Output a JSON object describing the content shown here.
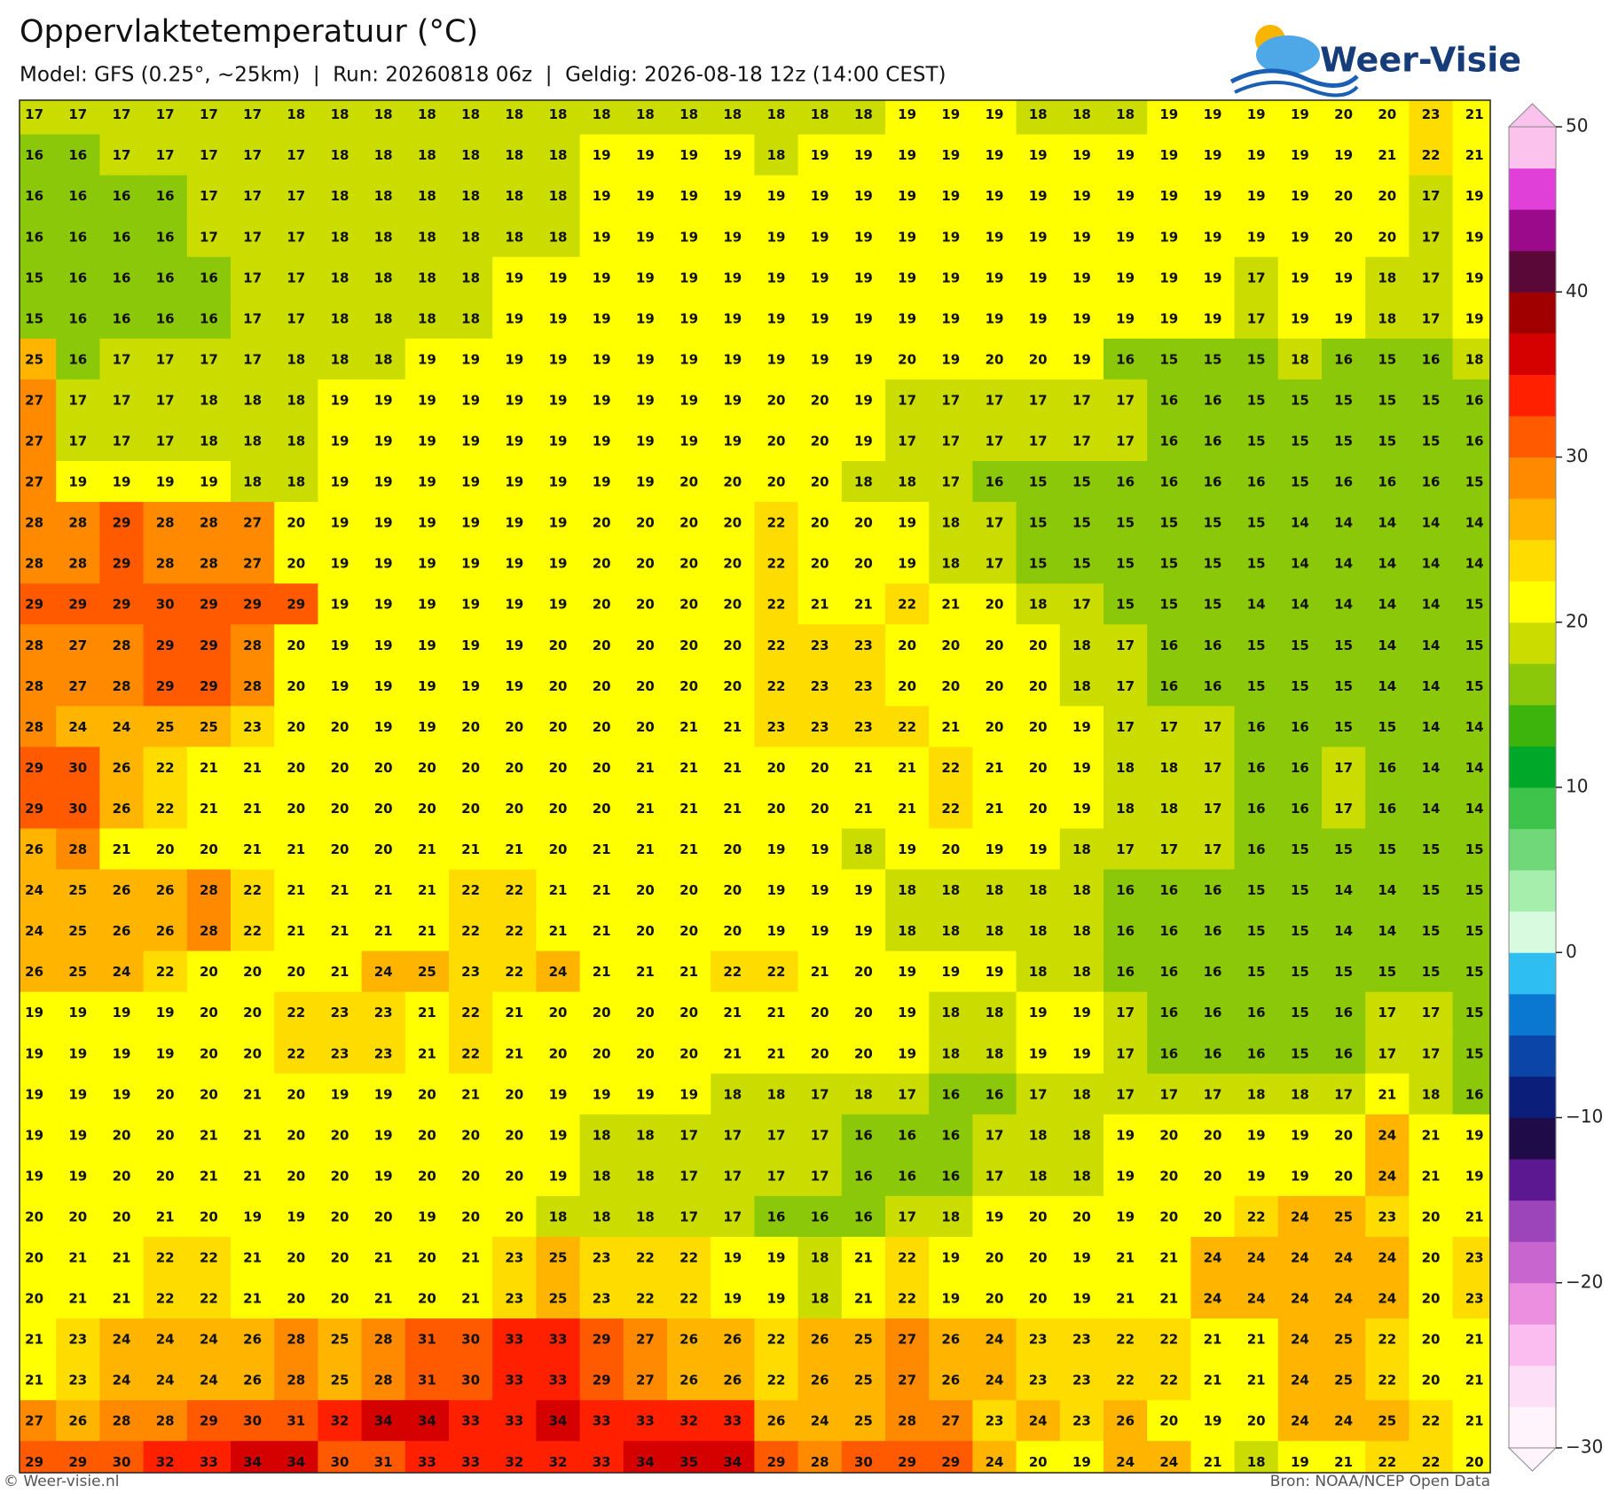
{
  "map": {
    "title": "Oppervlaktetemperatuur (°C)",
    "subtitle": "Model: GFS (0.25°, ~25km)  |  Run: 20260818 06z  |  Geldig: 2026-08-18 12z (14:00 CEST)",
    "logo": "Weer-Visie",
    "footer_left": "© Weer-visie.nl",
    "footer_right": "Bron: NOAA/NCEP Open Data",
    "values": [
      [
        17,
        17,
        17,
        17,
        17,
        17,
        18,
        18,
        18,
        18,
        18,
        18,
        18,
        18,
        18,
        18,
        18,
        18,
        18,
        18,
        19,
        19,
        19,
        18,
        18,
        18,
        19,
        19,
        19,
        19,
        20,
        20,
        23,
        21
      ],
      [
        16,
        16,
        17,
        17,
        17,
        17,
        17,
        18,
        18,
        18,
        18,
        18,
        18,
        19,
        19,
        19,
        19,
        18,
        19,
        19,
        19,
        19,
        19,
        19,
        19,
        19,
        19,
        19,
        19,
        19,
        19,
        21,
        22,
        21
      ],
      [
        16,
        16,
        16,
        16,
        17,
        17,
        17,
        18,
        18,
        18,
        18,
        18,
        18,
        19,
        19,
        19,
        19,
        19,
        19,
        19,
        19,
        19,
        19,
        19,
        19,
        19,
        19,
        19,
        19,
        19,
        20,
        20,
        17,
        19
      ],
      [
        16,
        16,
        16,
        16,
        17,
        17,
        17,
        18,
        18,
        18,
        18,
        18,
        18,
        19,
        19,
        19,
        19,
        19,
        19,
        19,
        19,
        19,
        19,
        19,
        19,
        19,
        19,
        19,
        19,
        19,
        20,
        20,
        17,
        19
      ],
      [
        15,
        16,
        16,
        16,
        16,
        17,
        17,
        18,
        18,
        18,
        18,
        19,
        19,
        19,
        19,
        19,
        19,
        19,
        19,
        19,
        19,
        19,
        19,
        19,
        19,
        19,
        19,
        19,
        17,
        19,
        19,
        18,
        17,
        19
      ],
      [
        15,
        16,
        16,
        16,
        16,
        17,
        17,
        18,
        18,
        18,
        18,
        19,
        19,
        19,
        19,
        19,
        19,
        19,
        19,
        19,
        19,
        19,
        19,
        19,
        19,
        19,
        19,
        19,
        17,
        19,
        19,
        18,
        17,
        19
      ],
      [
        25,
        16,
        17,
        17,
        17,
        17,
        18,
        18,
        18,
        19,
        19,
        19,
        19,
        19,
        19,
        19,
        19,
        19,
        19,
        19,
        20,
        19,
        20,
        20,
        19,
        16,
        15,
        15,
        15,
        18,
        16,
        15,
        16,
        18
      ],
      [
        27,
        17,
        17,
        17,
        18,
        18,
        18,
        19,
        19,
        19,
        19,
        19,
        19,
        19,
        19,
        19,
        19,
        20,
        20,
        19,
        17,
        17,
        17,
        17,
        17,
        17,
        16,
        16,
        15,
        15,
        15,
        15,
        15,
        16
      ],
      [
        27,
        17,
        17,
        17,
        18,
        18,
        18,
        19,
        19,
        19,
        19,
        19,
        19,
        19,
        19,
        19,
        19,
        20,
        20,
        19,
        17,
        17,
        17,
        17,
        17,
        17,
        16,
        16,
        15,
        15,
        15,
        15,
        15,
        16
      ],
      [
        27,
        19,
        19,
        19,
        19,
        18,
        18,
        19,
        19,
        19,
        19,
        19,
        19,
        19,
        19,
        20,
        20,
        20,
        20,
        18,
        18,
        17,
        16,
        15,
        15,
        16,
        16,
        16,
        16,
        15,
        16,
        16,
        16,
        15
      ],
      [
        28,
        28,
        29,
        28,
        28,
        27,
        20,
        19,
        19,
        19,
        19,
        19,
        19,
        20,
        20,
        20,
        20,
        22,
        20,
        20,
        19,
        18,
        17,
        15,
        15,
        15,
        15,
        15,
        15,
        14,
        14,
        14,
        14,
        14
      ],
      [
        28,
        28,
        29,
        28,
        28,
        27,
        20,
        19,
        19,
        19,
        19,
        19,
        19,
        20,
        20,
        20,
        20,
        22,
        20,
        20,
        19,
        18,
        17,
        15,
        15,
        15,
        15,
        15,
        15,
        14,
        14,
        14,
        14,
        14
      ],
      [
        29,
        29,
        29,
        30,
        29,
        29,
        29,
        19,
        19,
        19,
        19,
        19,
        19,
        20,
        20,
        20,
        20,
        22,
        21,
        21,
        22,
        21,
        20,
        18,
        17,
        15,
        15,
        15,
        14,
        14,
        14,
        14,
        14,
        15
      ],
      [
        28,
        27,
        28,
        29,
        29,
        28,
        20,
        19,
        19,
        19,
        19,
        19,
        20,
        20,
        20,
        20,
        20,
        22,
        23,
        23,
        20,
        20,
        20,
        20,
        18,
        17,
        16,
        16,
        15,
        15,
        15,
        14,
        14,
        15
      ],
      [
        28,
        27,
        28,
        29,
        29,
        28,
        20,
        19,
        19,
        19,
        19,
        19,
        20,
        20,
        20,
        20,
        20,
        22,
        23,
        23,
        20,
        20,
        20,
        20,
        18,
        17,
        16,
        16,
        15,
        15,
        15,
        14,
        14,
        15
      ],
      [
        28,
        24,
        24,
        25,
        25,
        23,
        20,
        20,
        19,
        19,
        20,
        20,
        20,
        20,
        20,
        21,
        21,
        23,
        23,
        23,
        22,
        21,
        20,
        20,
        19,
        17,
        17,
        17,
        16,
        16,
        15,
        15,
        14,
        14
      ],
      [
        29,
        30,
        26,
        22,
        21,
        21,
        20,
        20,
        20,
        20,
        20,
        20,
        20,
        20,
        21,
        21,
        21,
        20,
        20,
        21,
        21,
        22,
        21,
        20,
        19,
        18,
        18,
        17,
        16,
        16,
        17,
        16,
        14,
        14
      ],
      [
        29,
        30,
        26,
        22,
        21,
        21,
        20,
        20,
        20,
        20,
        20,
        20,
        20,
        20,
        21,
        21,
        21,
        20,
        20,
        21,
        21,
        22,
        21,
        20,
        19,
        18,
        18,
        17,
        16,
        16,
        17,
        16,
        14,
        14
      ],
      [
        26,
        28,
        21,
        20,
        20,
        21,
        21,
        20,
        20,
        21,
        21,
        21,
        20,
        21,
        21,
        21,
        20,
        19,
        19,
        18,
        19,
        20,
        19,
        19,
        18,
        17,
        17,
        17,
        16,
        15,
        15,
        15,
        15,
        15
      ],
      [
        24,
        25,
        26,
        26,
        28,
        22,
        21,
        21,
        21,
        21,
        22,
        22,
        21,
        21,
        20,
        20,
        20,
        19,
        19,
        19,
        18,
        18,
        18,
        18,
        18,
        16,
        16,
        16,
        15,
        15,
        14,
        14,
        15,
        15
      ],
      [
        24,
        25,
        26,
        26,
        28,
        22,
        21,
        21,
        21,
        21,
        22,
        22,
        21,
        21,
        20,
        20,
        20,
        19,
        19,
        19,
        18,
        18,
        18,
        18,
        18,
        16,
        16,
        16,
        15,
        15,
        14,
        14,
        15,
        15
      ],
      [
        26,
        25,
        24,
        22,
        20,
        20,
        20,
        21,
        24,
        25,
        23,
        22,
        24,
        21,
        21,
        21,
        22,
        22,
        21,
        20,
        19,
        19,
        19,
        18,
        18,
        16,
        16,
        16,
        15,
        15,
        15,
        15,
        15,
        15
      ],
      [
        19,
        19,
        19,
        19,
        20,
        20,
        22,
        23,
        23,
        21,
        22,
        21,
        20,
        20,
        20,
        20,
        21,
        21,
        20,
        20,
        19,
        18,
        18,
        19,
        19,
        17,
        16,
        16,
        16,
        15,
        16,
        17,
        17,
        15
      ],
      [
        19,
        19,
        19,
        19,
        20,
        20,
        22,
        23,
        23,
        21,
        22,
        21,
        20,
        20,
        20,
        20,
        21,
        21,
        20,
        20,
        19,
        18,
        18,
        19,
        19,
        17,
        16,
        16,
        16,
        15,
        16,
        17,
        17,
        15
      ],
      [
        19,
        19,
        19,
        20,
        20,
        21,
        20,
        19,
        19,
        20,
        21,
        20,
        19,
        19,
        19,
        19,
        18,
        18,
        17,
        18,
        17,
        16,
        16,
        17,
        18,
        17,
        17,
        17,
        18,
        18,
        17,
        21,
        18,
        16
      ],
      [
        19,
        19,
        20,
        20,
        21,
        21,
        20,
        20,
        19,
        20,
        20,
        20,
        19,
        18,
        18,
        17,
        17,
        17,
        17,
        16,
        16,
        16,
        17,
        18,
        18,
        19,
        20,
        20,
        19,
        19,
        20,
        24,
        21,
        19
      ],
      [
        19,
        19,
        20,
        20,
        21,
        21,
        20,
        20,
        19,
        20,
        20,
        20,
        19,
        18,
        18,
        17,
        17,
        17,
        17,
        16,
        16,
        16,
        17,
        18,
        18,
        19,
        20,
        20,
        19,
        19,
        20,
        24,
        21,
        19
      ],
      [
        20,
        20,
        20,
        21,
        20,
        19,
        19,
        20,
        20,
        19,
        20,
        20,
        18,
        18,
        18,
        17,
        17,
        16,
        16,
        16,
        17,
        18,
        19,
        20,
        20,
        19,
        20,
        20,
        22,
        24,
        25,
        23,
        20,
        21
      ],
      [
        20,
        21,
        21,
        22,
        22,
        21,
        20,
        20,
        21,
        20,
        21,
        23,
        25,
        23,
        22,
        22,
        19,
        19,
        18,
        21,
        22,
        19,
        20,
        20,
        19,
        21,
        21,
        24,
        24,
        24,
        24,
        24,
        20,
        23
      ],
      [
        20,
        21,
        21,
        22,
        22,
        21,
        20,
        20,
        21,
        20,
        21,
        23,
        25,
        23,
        22,
        22,
        19,
        19,
        18,
        21,
        22,
        19,
        20,
        20,
        19,
        21,
        21,
        24,
        24,
        24,
        24,
        24,
        20,
        23
      ],
      [
        21,
        23,
        24,
        24,
        24,
        26,
        28,
        25,
        28,
        31,
        30,
        33,
        33,
        29,
        27,
        26,
        26,
        22,
        26,
        25,
        27,
        26,
        24,
        23,
        23,
        22,
        22,
        21,
        21,
        24,
        25,
        22,
        20,
        21
      ],
      [
        21,
        23,
        24,
        24,
        24,
        26,
        28,
        25,
        28,
        31,
        30,
        33,
        33,
        29,
        27,
        26,
        26,
        22,
        26,
        25,
        27,
        26,
        24,
        23,
        23,
        22,
        22,
        21,
        21,
        24,
        25,
        22,
        20,
        21
      ],
      [
        27,
        26,
        28,
        28,
        29,
        30,
        31,
        32,
        34,
        34,
        33,
        33,
        34,
        33,
        33,
        32,
        33,
        26,
        24,
        25,
        28,
        27,
        23,
        24,
        23,
        26,
        20,
        19,
        20,
        24,
        24,
        25,
        22,
        21
      ],
      [
        29,
        29,
        30,
        32,
        33,
        34,
        34,
        30,
        31,
        33,
        33,
        32,
        32,
        33,
        34,
        35,
        34,
        29,
        28,
        30,
        29,
        29,
        24,
        20,
        19,
        24,
        24,
        21,
        18,
        19,
        21,
        22,
        22,
        20
      ]
    ],
    "colorbar": {
      "lim": [
        -30,
        50
      ],
      "ticks": [
        50,
        40,
        30,
        20,
        10,
        0,
        {
          "value": -10,
          "label": "−10"
        },
        {
          "value": -20,
          "label": "−20"
        },
        {
          "value": -30,
          "label": "−30"
        }
      ],
      "colors": [
        "#fff4fc",
        "#fde0f7",
        "#fbbcef",
        "#ec8fe0",
        "#c965cf",
        "#9c45bb",
        "#5c1890",
        "#1e0b48",
        "#0a1e7a",
        "#0b45a8",
        "#0a78d0",
        "#2fbef2",
        "#d8fbe0",
        "#a6eeac",
        "#70d878",
        "#3ec44a",
        "#00a82a",
        "#3cb40c",
        "#8cc80a",
        "#cadc00",
        "#ffff00",
        "#ffdc00",
        "#ffb400",
        "#ff8a00",
        "#ff5a00",
        "#ff2000",
        "#d50000",
        "#a00000",
        "#5a0838",
        "#9a0a8a",
        "#e040d8",
        "#fbc2ee"
      ]
    }
  }
}
